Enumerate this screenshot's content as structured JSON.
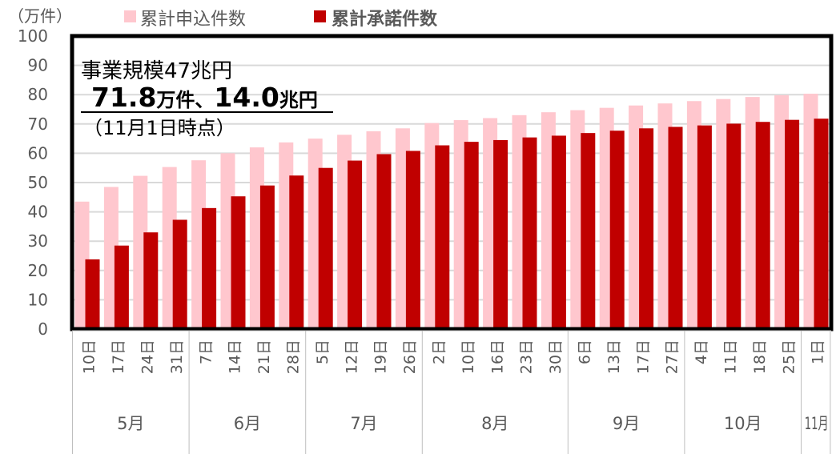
{
  "chart_data": {
    "type": "bar",
    "unit_label": "（万件）",
    "ylim": [
      0,
      100
    ],
    "y_ticks": [
      0,
      10,
      20,
      30,
      40,
      50,
      60,
      70,
      80,
      90,
      100
    ],
    "grid": true,
    "legend_position": "top",
    "categories": [
      "10日",
      "17日",
      "24日",
      "31日",
      "7日",
      "14日",
      "21日",
      "28日",
      "5日",
      "12日",
      "19日",
      "26日",
      "2日",
      "10日",
      "16日",
      "23日",
      "30日",
      "6日",
      "13日",
      "17日",
      "27日",
      "4日",
      "11日",
      "18日",
      "25日",
      "1日"
    ],
    "months": [
      {
        "label": "5月",
        "count": 4
      },
      {
        "label": "6月",
        "count": 4
      },
      {
        "label": "7月",
        "count": 4
      },
      {
        "label": "8月",
        "count": 5
      },
      {
        "label": "9月",
        "count": 4
      },
      {
        "label": "10月",
        "count": 4
      },
      {
        "label": "11月",
        "count": 1
      }
    ],
    "series": [
      {
        "name": "累計申込件数",
        "color": "#FFC7CE",
        "values": [
          43.5,
          48.5,
          52.3,
          55.3,
          57.6,
          60.0,
          62.0,
          63.7,
          65.0,
          66.3,
          67.5,
          68.5,
          70.3,
          71.3,
          72.0,
          73.0,
          74.0,
          74.7,
          75.5,
          76.3,
          77.0,
          77.8,
          78.5,
          79.2,
          79.8,
          80.3
        ]
      },
      {
        "name": "累計承諾件数",
        "color": "#C00000",
        "values": [
          23.8,
          28.5,
          33.0,
          37.3,
          41.3,
          45.3,
          49.0,
          52.4,
          55.0,
          57.5,
          59.7,
          60.8,
          62.7,
          63.9,
          64.5,
          65.4,
          66.0,
          66.9,
          67.7,
          68.5,
          69.0,
          69.5,
          70.1,
          70.7,
          71.4,
          71.8
        ]
      }
    ],
    "annotation": {
      "line1": "事業規模47兆円",
      "line2_num1": "71.8",
      "line2_unit1": "万件、",
      "line2_num2": "14.0",
      "line2_unit2": "兆円",
      "line3": "（11月1日時点）"
    }
  }
}
